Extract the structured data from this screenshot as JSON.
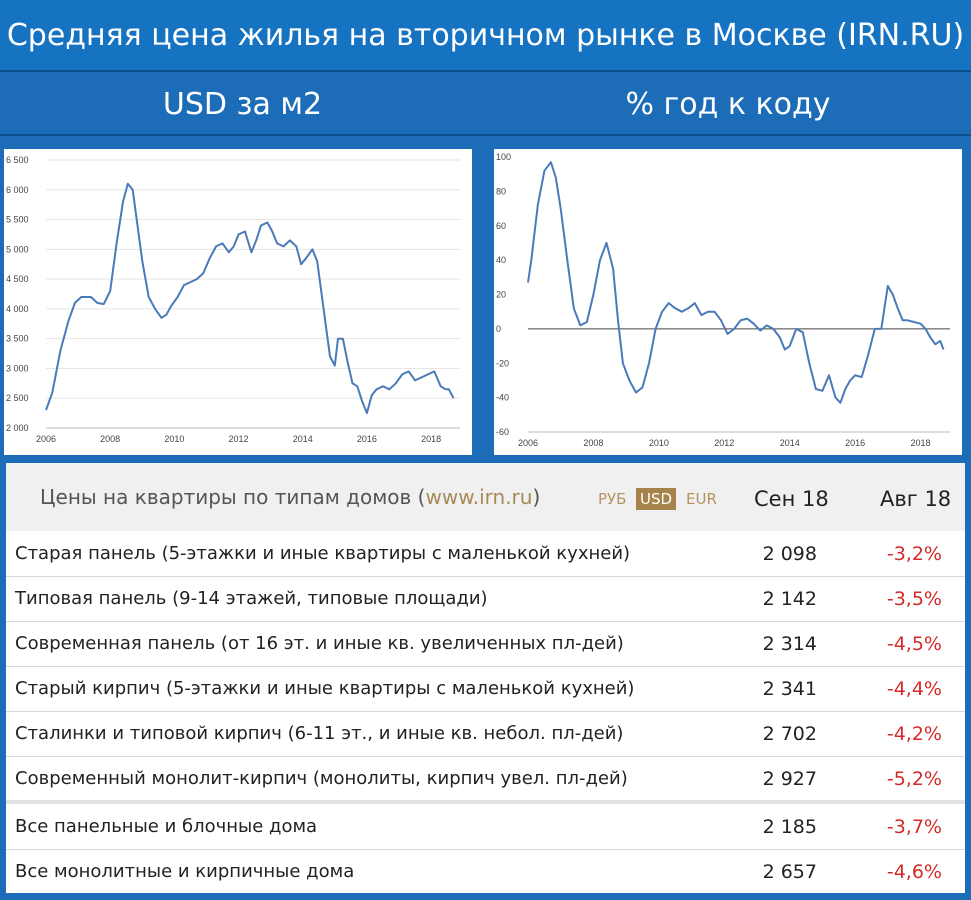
{
  "header": {
    "title": "Средняя цена жилья на вторичном рынке в Москве (IRN.RU)",
    "left_subtitle": "USD за м2",
    "right_subtitle": "% год к коду"
  },
  "chart_data": [
    {
      "type": "line",
      "title": "USD за м2",
      "ylim": [
        2000,
        6500
      ],
      "xlim": [
        2006,
        2018.9
      ],
      "y_ticks": [
        2000,
        2500,
        3000,
        3500,
        4000,
        4500,
        5000,
        5500,
        6000,
        6500
      ],
      "y_tick_labels": [
        "2 000",
        "2 500",
        "3 000",
        "3 500",
        "4 000",
        "4 500",
        "5 000",
        "5 500",
        "6 000",
        "6 500"
      ],
      "x_ticks": [
        2006,
        2008,
        2010,
        2012,
        2014,
        2016,
        2018
      ],
      "x_tick_labels": [
        "2006",
        "2008",
        "2010",
        "2012",
        "2014",
        "2016",
        "2018"
      ],
      "grid": true,
      "color": "#4a7ab8",
      "series": [
        {
          "x": [
            2006.0,
            2006.2,
            2006.45,
            2006.7,
            2006.9,
            2007.1,
            2007.4,
            2007.6,
            2007.8,
            2008.0,
            2008.2,
            2008.4,
            2008.55,
            2008.7,
            2008.85,
            2009.0,
            2009.2,
            2009.4,
            2009.6,
            2009.75,
            2009.9,
            2010.1,
            2010.3,
            2010.5,
            2010.7,
            2010.9,
            2011.1,
            2011.3,
            2011.5,
            2011.7,
            2011.85,
            2012.0,
            2012.2,
            2012.4,
            2012.55,
            2012.7,
            2012.9,
            2013.05,
            2013.2,
            2013.4,
            2013.6,
            2013.8,
            2013.95,
            2014.1,
            2014.3,
            2014.45,
            2014.6,
            2014.75,
            2014.85,
            2015.0,
            2015.1,
            2015.25,
            2015.4,
            2015.55,
            2015.7,
            2015.85,
            2016.0,
            2016.15,
            2016.3,
            2016.5,
            2016.7,
            2016.9,
            2017.1,
            2017.3,
            2017.5,
            2017.7,
            2017.9,
            2018.1,
            2018.3,
            2018.45,
            2018.55,
            2018.7
          ],
          "y": [
            2300,
            2600,
            3300,
            3800,
            4100,
            4200,
            4200,
            4100,
            4080,
            4300,
            5100,
            5800,
            6100,
            6000,
            5400,
            4800,
            4200,
            4000,
            3850,
            3900,
            4050,
            4200,
            4400,
            4450,
            4500,
            4600,
            4850,
            5050,
            5100,
            4950,
            5050,
            5250,
            5300,
            4950,
            5150,
            5400,
            5450,
            5300,
            5100,
            5050,
            5150,
            5050,
            4750,
            4850,
            5000,
            4800,
            4200,
            3600,
            3200,
            3050,
            3500,
            3500,
            3100,
            2750,
            2700,
            2450,
            2250,
            2550,
            2650,
            2700,
            2650,
            2750,
            2900,
            2950,
            2800,
            2850,
            2900,
            2950,
            2700,
            2650,
            2650,
            2500
          ]
        }
      ]
    },
    {
      "type": "line",
      "title": "% год к коду",
      "ylim": [
        -60,
        100
      ],
      "xlim": [
        2006,
        2018.9
      ],
      "y_ticks": [
        -60,
        -40,
        -20,
        0,
        20,
        40,
        60,
        80,
        100
      ],
      "y_tick_labels": [
        "-60",
        "-40",
        "-20",
        "0",
        "20",
        "40",
        "60",
        "80",
        "100"
      ],
      "x_ticks": [
        2006,
        2008,
        2010,
        2012,
        2014,
        2016,
        2018
      ],
      "x_tick_labels": [
        "2006",
        "2008",
        "2010",
        "2012",
        "2014",
        "2016",
        "2018"
      ],
      "grid": false,
      "color": "#4a7ab8",
      "series": [
        {
          "x": [
            2006.0,
            2006.1,
            2006.3,
            2006.5,
            2006.7,
            2006.85,
            2007.0,
            2007.2,
            2007.4,
            2007.6,
            2007.8,
            2008.0,
            2008.2,
            2008.4,
            2008.6,
            2008.75,
            2008.9,
            2009.1,
            2009.3,
            2009.5,
            2009.7,
            2009.9,
            2010.1,
            2010.3,
            2010.5,
            2010.7,
            2010.9,
            2011.1,
            2011.3,
            2011.5,
            2011.7,
            2011.9,
            2012.1,
            2012.3,
            2012.5,
            2012.7,
            2012.9,
            2013.1,
            2013.3,
            2013.5,
            2013.7,
            2013.85,
            2014.0,
            2014.2,
            2014.4,
            2014.6,
            2014.8,
            2015.0,
            2015.2,
            2015.4,
            2015.55,
            2015.7,
            2015.85,
            2016.0,
            2016.2,
            2016.4,
            2016.6,
            2016.8,
            2017.0,
            2017.15,
            2017.3,
            2017.45,
            2017.6,
            2017.8,
            2018.0,
            2018.15,
            2018.3,
            2018.45,
            2018.6,
            2018.7
          ],
          "y": [
            27,
            40,
            72,
            92,
            97,
            88,
            70,
            40,
            12,
            2,
            4,
            20,
            40,
            50,
            35,
            5,
            -20,
            -30,
            -37,
            -34,
            -20,
            0,
            10,
            15,
            12,
            10,
            12,
            15,
            8,
            10,
            10,
            5,
            -3,
            0,
            5,
            6,
            3,
            -1,
            2,
            0,
            -5,
            -12,
            -10,
            0,
            -2,
            -20,
            -35,
            -36,
            -27,
            -40,
            -43,
            -35,
            -30,
            -27,
            -28,
            -15,
            0,
            0,
            25,
            20,
            12,
            5,
            5,
            4,
            3,
            0,
            -5,
            -9,
            -7,
            -12
          ]
        }
      ]
    }
  ],
  "table": {
    "caption": "Цены на квартиры по типам домов (",
    "caption_link": "www.irn.ru",
    "caption_end": ")",
    "currencies": [
      "РУБ",
      "USD",
      "EUR"
    ],
    "active_currency": "USD",
    "col_current": "Сен 18",
    "col_prev": "Авг 18",
    "rows": [
      {
        "name": "Старая панель (5-этажки и иные квартиры с маленькой кухней)",
        "price": "2 098",
        "change": "-3,2%"
      },
      {
        "name": "Типовая панель (9-14 этажей, типовые площади)",
        "price": "2 142",
        "change": "-3,5%"
      },
      {
        "name": "Современная панель (от 16 эт. и иные кв. увеличенных пл-дей)",
        "price": "2 314",
        "change": "-4,5%"
      },
      {
        "name": "Старый кирпич (5-этажки и иные квартиры с маленькой кухней)",
        "price": "2 341",
        "change": "-4,4%"
      },
      {
        "name": "Сталинки и типовой кирпич (6-11 эт., и иные кв. небол. пл-дей)",
        "price": "2 702",
        "change": "-4,2%"
      },
      {
        "name": "Современный монолит-кирпич (монолиты, кирпич увел. пл-дей)",
        "price": "2 927",
        "change": "-5,2%"
      }
    ],
    "summary_rows": [
      {
        "name": "Все панельные и блочные дома",
        "price": "2 185",
        "change": "-3,7%"
      },
      {
        "name": "Все монолитные и кирпичные дома",
        "price": "2 657",
        "change": "-4,6%"
      }
    ]
  }
}
